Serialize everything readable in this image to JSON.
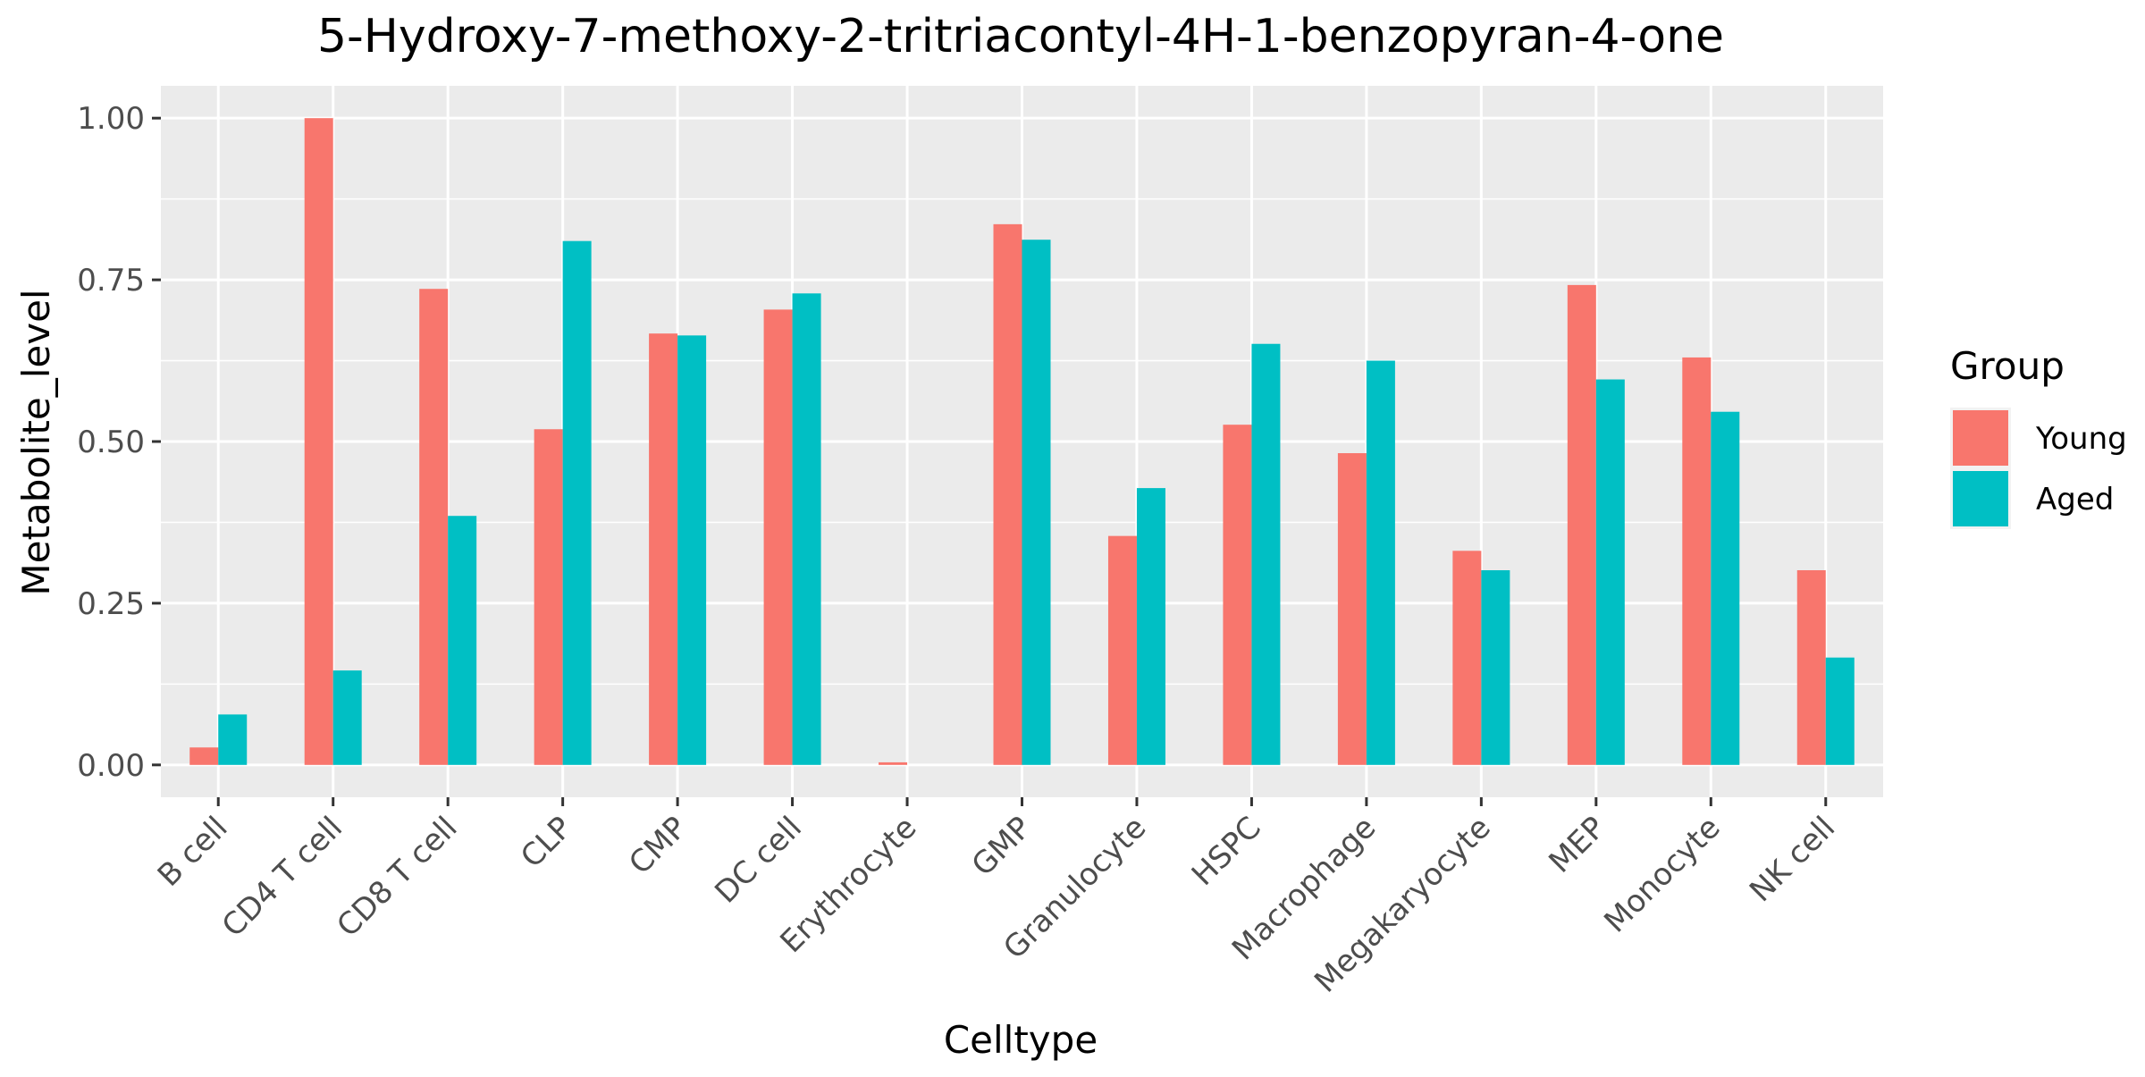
{
  "chart_data": {
    "type": "bar",
    "title": "5-Hydroxy-7-methoxy-2-tritriacontyl-4H-1-benzopyran-4-one",
    "xlabel": "Celltype",
    "ylabel": "Metabolite_level",
    "categories": [
      "B cell",
      "CD4 T cell",
      "CD8 T cell",
      "CLP",
      "CMP",
      "DC cell",
      "Erythrocyte",
      "GMP",
      "Granulocyte",
      "HSPC",
      "Macrophage",
      "Megakaryocyte",
      "MEP",
      "Monocyte",
      "NK cell"
    ],
    "series": [
      {
        "name": "Young",
        "color": "#F8766D",
        "values": [
          0.027,
          1.0,
          0.736,
          0.519,
          0.667,
          0.704,
          0.004,
          0.836,
          0.354,
          0.526,
          0.482,
          0.331,
          0.742,
          0.63,
          0.301
        ]
      },
      {
        "name": "Aged",
        "color": "#00BFC4",
        "values": [
          0.078,
          0.146,
          0.385,
          0.81,
          0.664,
          0.729,
          0.0,
          0.812,
          0.428,
          0.651,
          0.625,
          0.301,
          0.596,
          0.546,
          0.166
        ]
      }
    ],
    "ylim": [
      -0.05,
      1.05
    ],
    "yticks": [
      0.0,
      0.25,
      0.5,
      0.75,
      1.0
    ],
    "ytick_labels": [
      "0.00",
      "0.25",
      "0.50",
      "0.75",
      "1.00"
    ],
    "legend": {
      "title": "Group",
      "position": "right"
    },
    "grid": true,
    "panel_color": "#EBEBEB"
  }
}
